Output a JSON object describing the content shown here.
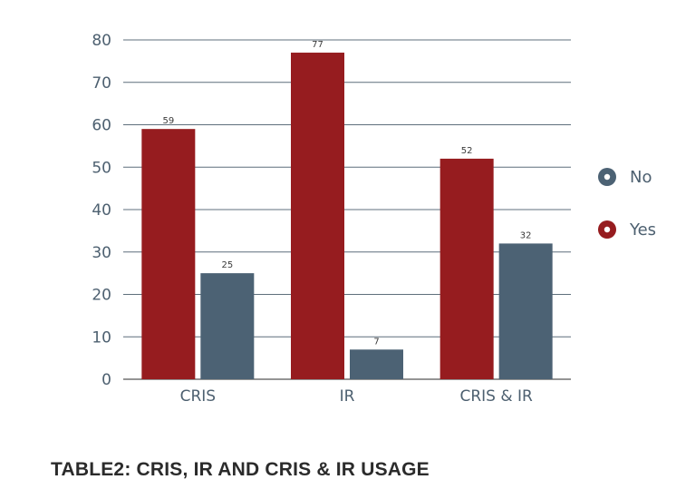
{
  "caption": "TABLE2: CRIS, IR AND CRIS & IR USAGE",
  "chart_data": {
    "type": "bar",
    "categories": [
      "CRIS",
      "IR",
      "CRIS & IR"
    ],
    "series": [
      {
        "name": "Yes",
        "values": [
          59,
          77,
          52
        ],
        "color": "#961c1f"
      },
      {
        "name": "No",
        "values": [
          25,
          7,
          32
        ],
        "color": "#4c6274"
      }
    ],
    "ylim": [
      0,
      80
    ],
    "yticks": [
      0,
      10,
      20,
      30,
      40,
      50,
      60,
      70,
      80
    ],
    "grid": true,
    "legend_position": "right",
    "legend_order": [
      "No",
      "Yes"
    ]
  }
}
